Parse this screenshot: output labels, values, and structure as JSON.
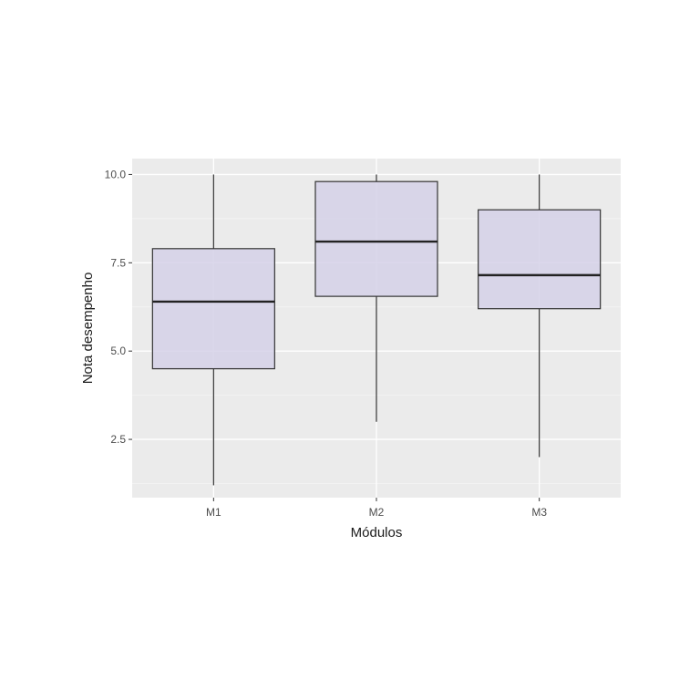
{
  "chart_data": {
    "type": "boxplot",
    "xlabel": "Módulos",
    "ylabel": "Nota desempenho",
    "ylim": [
      0.85,
      10.45
    ],
    "grid": true,
    "y_ticks": [
      {
        "value": 2.5,
        "label": "2.5"
      },
      {
        "value": 5.0,
        "label": "5.0"
      },
      {
        "value": 7.5,
        "label": "7.5"
      },
      {
        "value": 10.0,
        "label": "10.0"
      }
    ],
    "categories": [
      "M1",
      "M2",
      "M3"
    ],
    "boxes": [
      {
        "category": "M1",
        "min": 1.2,
        "q1": 4.5,
        "median": 6.4,
        "q3": 7.9,
        "max": 10.0
      },
      {
        "category": "M2",
        "min": 3.0,
        "q1": 6.55,
        "median": 8.1,
        "q3": 9.8,
        "max": 10.0
      },
      {
        "category": "M3",
        "min": 2.0,
        "q1": 6.2,
        "median": 7.15,
        "q3": 9.0,
        "max": 10.0
      }
    ],
    "colors": {
      "panel_background": "#ebebeb",
      "grid_major": "#ffffff",
      "grid_minor": "#f5f5f5",
      "box_fill": "#d5d1e8",
      "box_stroke": "#333333",
      "median": "#222222"
    }
  }
}
